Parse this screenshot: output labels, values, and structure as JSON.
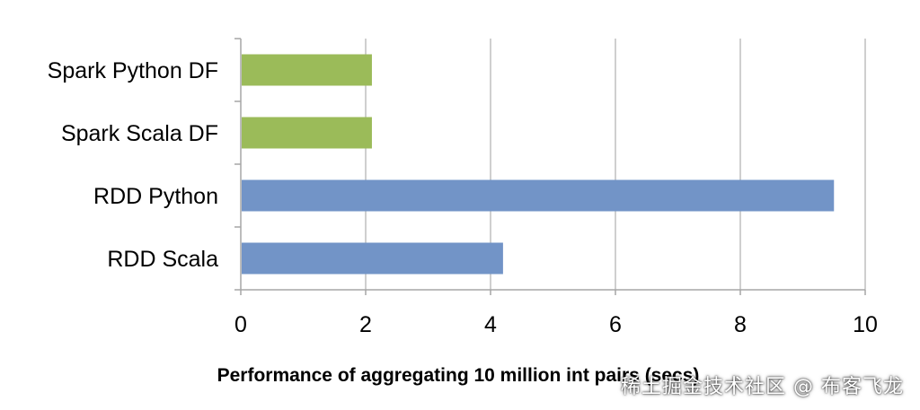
{
  "chart_data": {
    "type": "bar",
    "orientation": "horizontal",
    "categories": [
      "Spark Python DF",
      "Spark Scala DF",
      "RDD Python",
      "RDD Scala"
    ],
    "values": [
      2.1,
      2.1,
      9.5,
      4.2
    ],
    "colors": [
      "#9bbb59",
      "#9bbb59",
      "#7294c7",
      "#7294c7"
    ],
    "title": "",
    "xlabel": "Performance of aggregating 10 million int pairs (secs)",
    "ylabel": "",
    "xlim": [
      0,
      10
    ],
    "xticks": [
      0,
      2,
      4,
      6,
      8,
      10
    ],
    "grid": "vertical",
    "legend": "none"
  },
  "watermark": "稀土掘金技术社区 @ 布客飞龙"
}
